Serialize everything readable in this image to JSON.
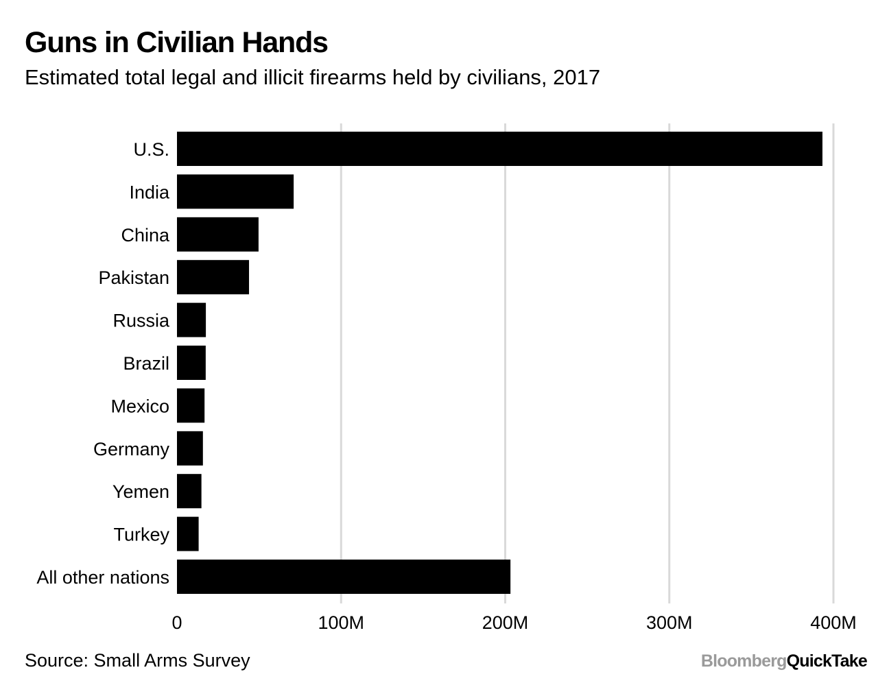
{
  "title": "Guns in Civilian Hands",
  "subtitle": "Estimated total legal and illicit firearms held by civilians, 2017",
  "source": "Source: Small Arms Survey",
  "logo": {
    "brand": "Bloomberg",
    "product": "QuickTake"
  },
  "colors": {
    "bar": "#000000",
    "grid": "#d9d9d9",
    "logo_brand": "#9a9a9a"
  },
  "chart_data": {
    "type": "bar",
    "orientation": "horizontal",
    "categories": [
      "U.S.",
      "India",
      "China",
      "Pakistan",
      "Russia",
      "Brazil",
      "Mexico",
      "Germany",
      "Yemen",
      "Turkey",
      "All other nations"
    ],
    "values": [
      393.3,
      71.1,
      49.7,
      43.9,
      17.6,
      17.5,
      16.8,
      15.8,
      14.9,
      13.2,
      203.2
    ],
    "units": "millions of firearms",
    "xlim": [
      0,
      400
    ],
    "xticks": [
      0,
      100,
      200,
      300,
      400
    ],
    "xtick_labels": [
      "0",
      "100M",
      "200M",
      "300M",
      "400M"
    ],
    "grid": true,
    "legend": "none"
  }
}
